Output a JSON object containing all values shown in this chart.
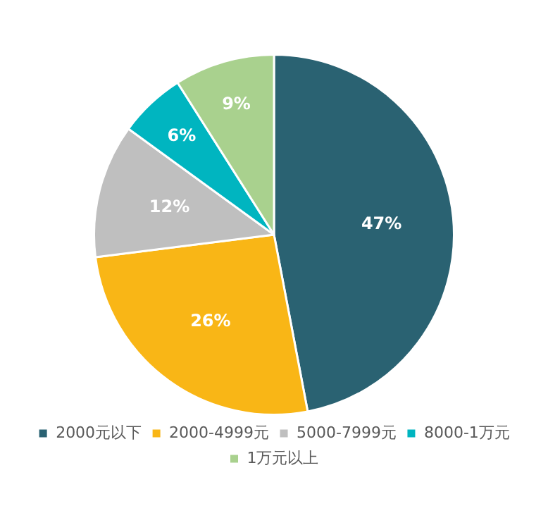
{
  "chart_data": {
    "type": "pie",
    "categories": [
      "2000元以下",
      "2000-4999元",
      "5000-7999元",
      "8000-1万元",
      "1万元以上"
    ],
    "values": [
      47,
      26,
      12,
      6,
      9
    ],
    "colors": [
      "#2a6272",
      "#f9b616",
      "#bfbfbf",
      "#00b5c0",
      "#a9d18e"
    ],
    "value_labels": [
      "47%",
      "26%",
      "12%",
      "6%",
      "9%"
    ],
    "legend": "bottom"
  }
}
